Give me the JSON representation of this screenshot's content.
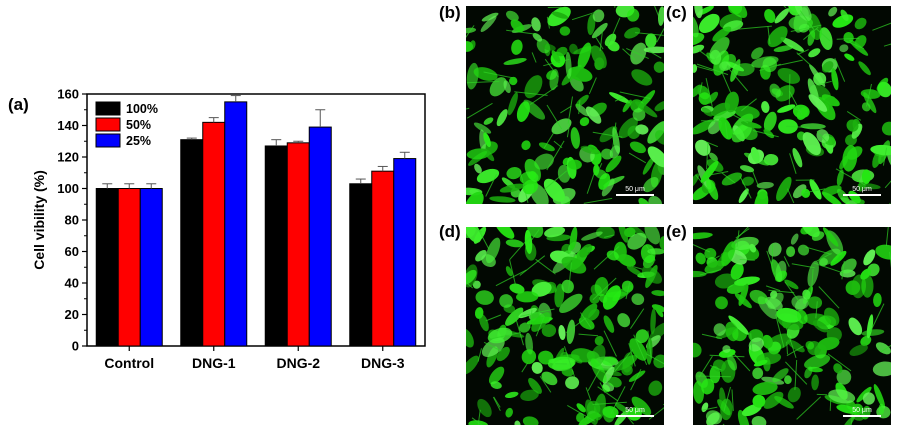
{
  "chart_data": {
    "type": "bar",
    "panel_label": "(a)",
    "categories": [
      "Control",
      "DNG-1",
      "DNG-2",
      "DNG-3"
    ],
    "series": [
      {
        "name": "100%",
        "color": "#000000",
        "values": [
          100,
          131,
          127,
          103
        ],
        "errors": [
          3,
          1,
          4,
          3
        ]
      },
      {
        "name": "50%",
        "color": "#ff0000",
        "values": [
          100,
          142,
          129,
          111
        ],
        "errors": [
          3,
          3,
          1,
          3
        ]
      },
      {
        "name": "25%",
        "color": "#0000ff",
        "values": [
          100,
          155,
          139,
          119
        ],
        "errors": [
          3,
          4,
          11,
          4
        ]
      }
    ],
    "xlabel": "",
    "ylabel": "Cell vibility (%)",
    "ylim": [
      0,
      160
    ],
    "yticks": [
      0,
      20,
      40,
      60,
      80,
      100,
      120,
      140,
      160
    ],
    "legend_position": "top-left",
    "grid": false
  },
  "micrographs": [
    {
      "label": "(b)",
      "scale": "50 μm",
      "fill_level": 0.55
    },
    {
      "label": "(c)",
      "scale": "50 μm",
      "fill_level": 0.75
    },
    {
      "label": "(d)",
      "scale": "50 μm",
      "fill_level": 0.8
    },
    {
      "label": "(e)",
      "scale": "50 μm",
      "fill_level": 0.65
    }
  ],
  "colors": {
    "cell_green": "#3ef02e",
    "background": "#020802"
  }
}
